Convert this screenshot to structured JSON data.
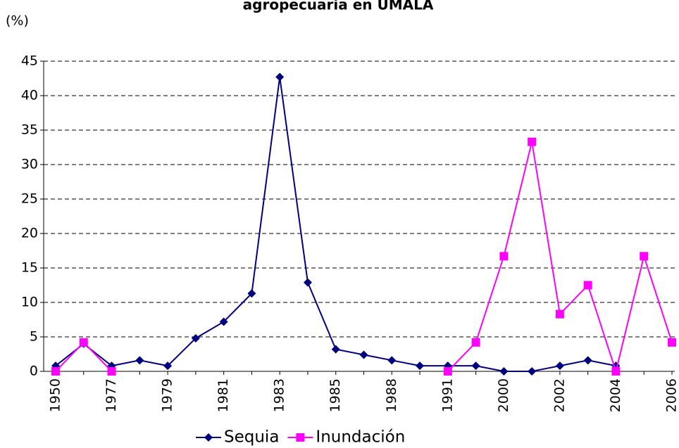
{
  "chart_data": {
    "type": "line",
    "title": "agropecuaria en UMALA",
    "y_axis_label": "(%)",
    "categories": [
      "1950",
      null,
      "1977",
      null,
      "1979",
      null,
      "1981",
      null,
      "1983",
      null,
      "1985",
      null,
      "1988",
      null,
      "1991",
      null,
      "2000",
      null,
      "2002",
      null,
      "2004",
      null,
      "2006"
    ],
    "series": [
      {
        "name": "Sequia",
        "color": "#000080",
        "marker": "diamond",
        "values": [
          0.8,
          4.0,
          0.8,
          1.6,
          0.8,
          4.8,
          7.2,
          11.3,
          42.7,
          12.9,
          3.2,
          2.4,
          1.6,
          0.8,
          0.8,
          0.8,
          0,
          0,
          0.8,
          1.6,
          0.8,
          null,
          null
        ]
      },
      {
        "name": "Inundación",
        "color": "#ff00ff",
        "marker": "square",
        "values": [
          0,
          4.2,
          0,
          null,
          null,
          null,
          null,
          null,
          null,
          null,
          null,
          null,
          null,
          null,
          0,
          4.2,
          16.7,
          33.3,
          8.3,
          12.5,
          0,
          16.7,
          4.2
        ]
      }
    ],
    "ylim": [
      0,
      45
    ],
    "yticks": [
      0,
      5,
      10,
      15,
      20,
      25,
      30,
      35,
      40,
      45
    ],
    "grid": true,
    "legend": "bottom"
  }
}
